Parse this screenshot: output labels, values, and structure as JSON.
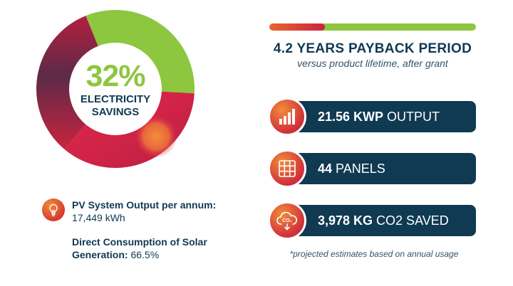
{
  "savings": {
    "percent": "32%",
    "label_line1": "ELECTRICITY",
    "label_line2": "SAVINGS",
    "value": 32
  },
  "pv_output": {
    "label": "PV System Output per annum:",
    "value": "17,449 kWh",
    "icon": "lightbulb-icon"
  },
  "direct_consumption": {
    "label_line1": "Direct Consumption of Solar",
    "label_line2": "Generation:",
    "value": "66.5%"
  },
  "payback": {
    "title": "4.2 YEARS PAYBACK PERIOD",
    "subtitle": "versus product lifetime, after grant",
    "progress_fraction": 0.27
  },
  "stats": [
    {
      "bold": "21.56 KWP",
      "text": "OUTPUT",
      "icon": "bar-chart-icon"
    },
    {
      "bold": "44",
      "text": "PANELS",
      "icon": "solar-panel-icon"
    },
    {
      "bold": "3,978 KG",
      "text": "CO2 SAVED",
      "icon": "co2-cloud-icon",
      "icon_text": "CO₂"
    }
  ],
  "footnote": "*projected estimates based on annual usage",
  "colors": {
    "navy": "#0f3a52",
    "green": "#8dc63f",
    "orange": "#f08a3c",
    "red": "#d0303a",
    "crimson": "#c9243f",
    "maroon": "#6e2a47"
  }
}
